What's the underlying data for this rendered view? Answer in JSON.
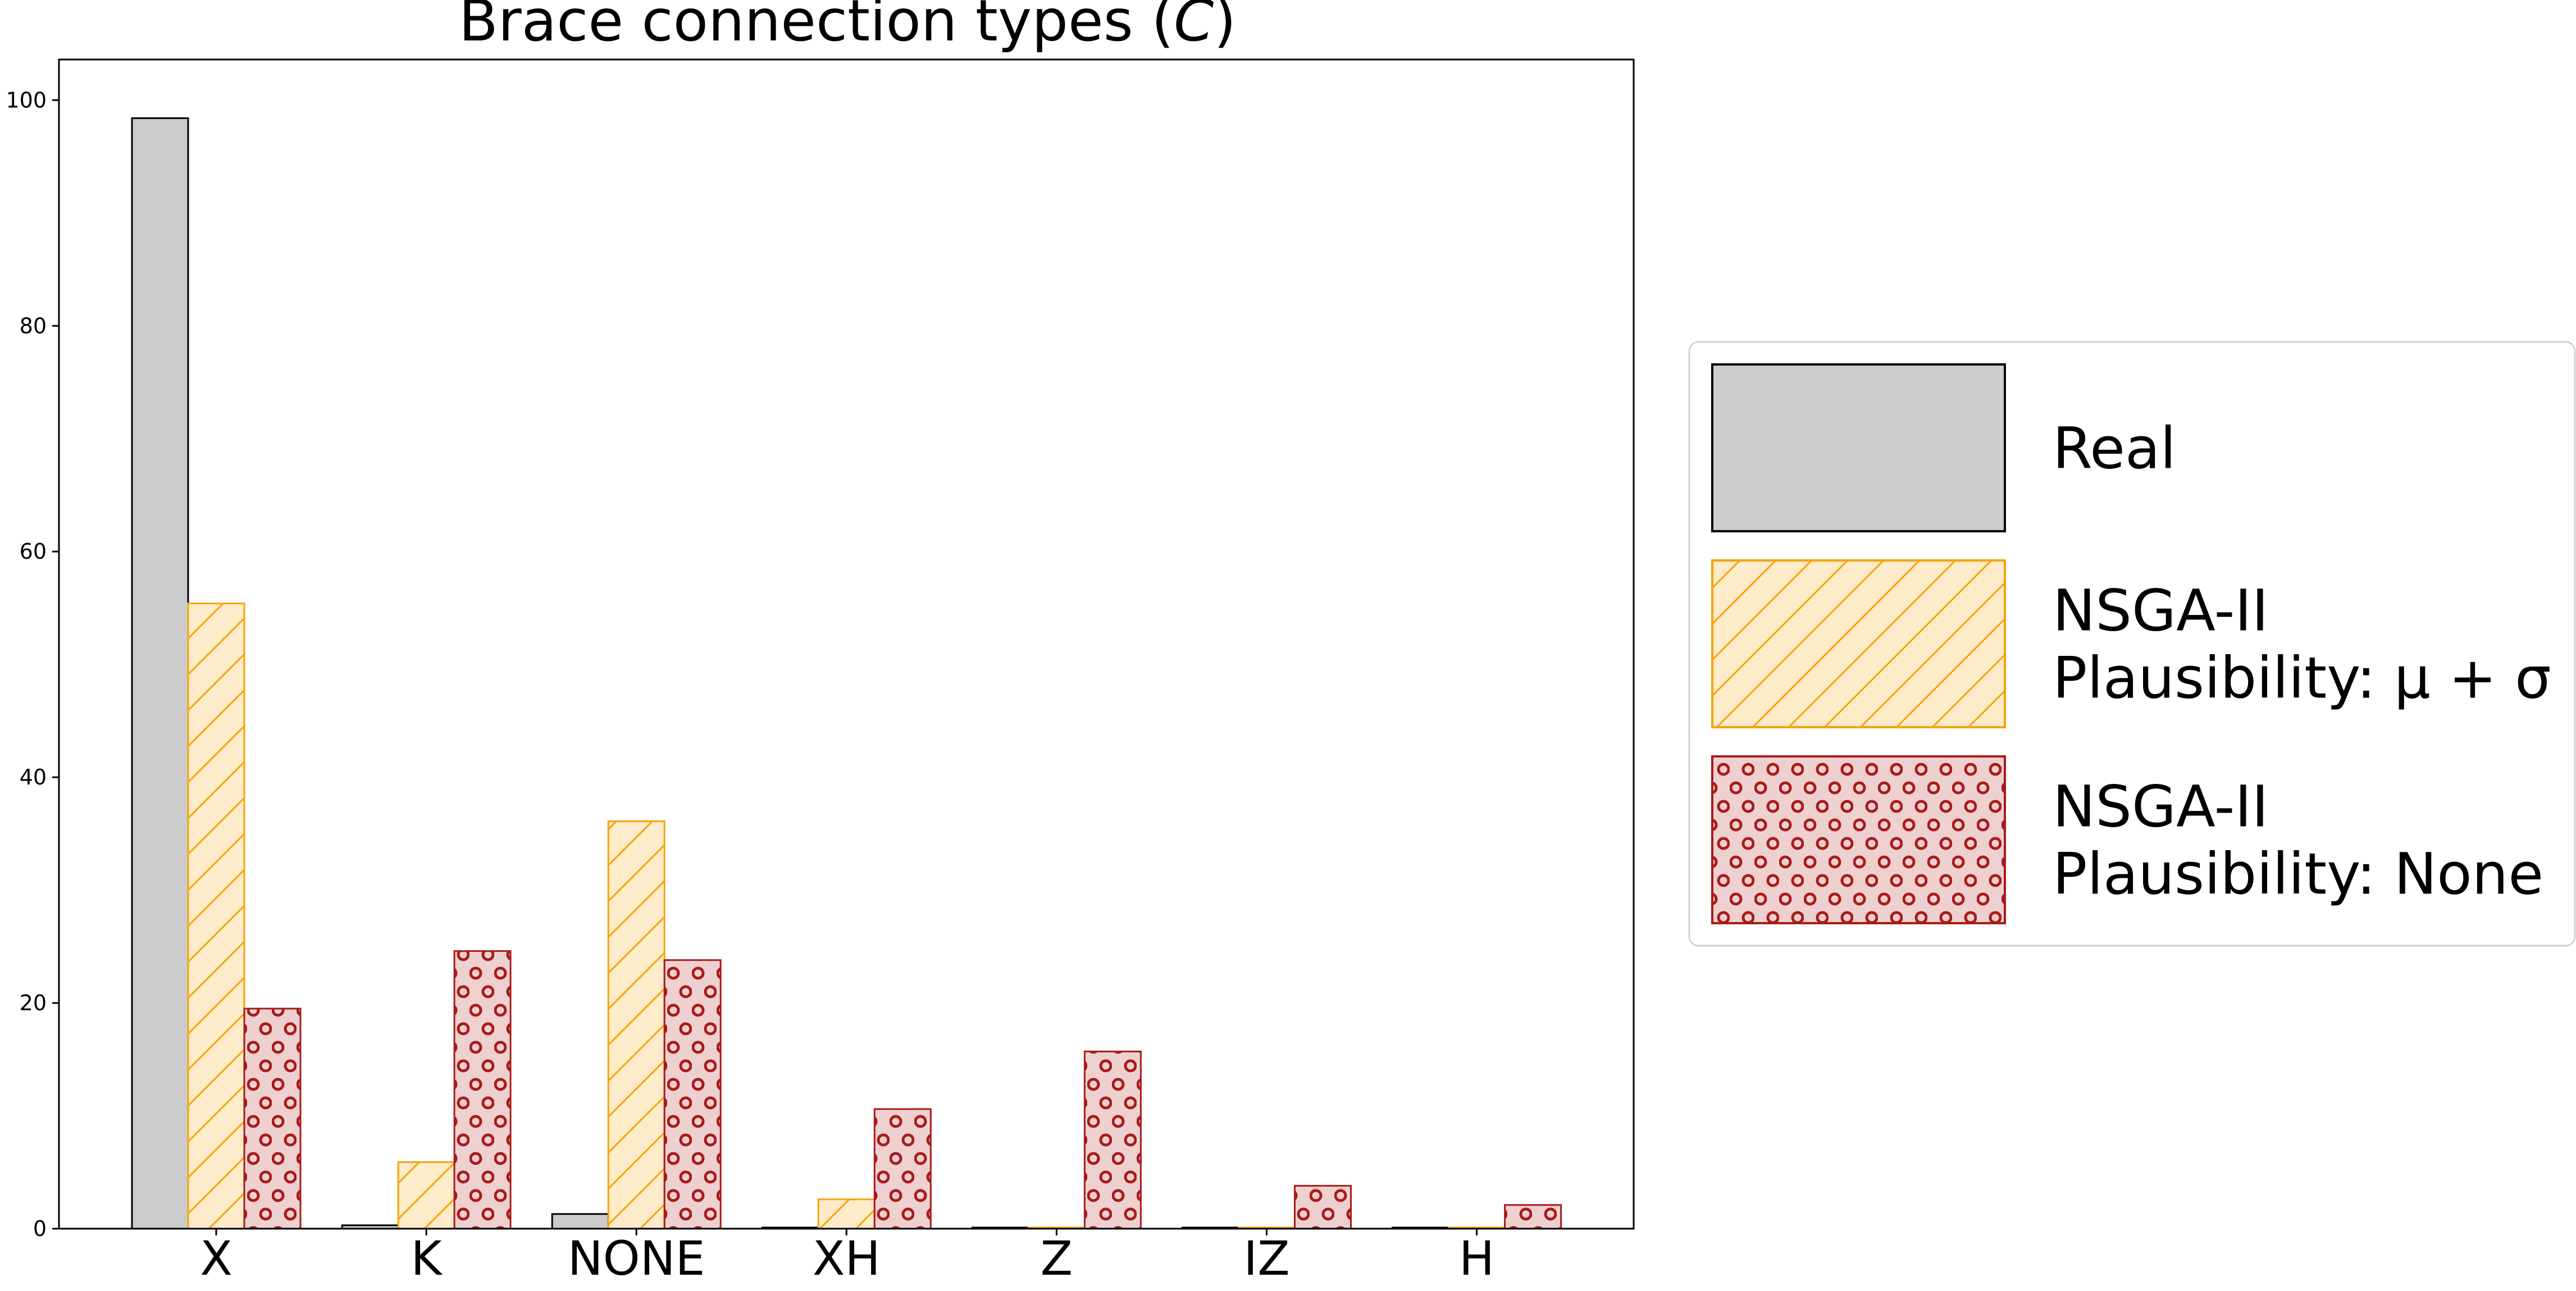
{
  "chart_data": {
    "type": "bar",
    "title": "Brace connection types (C)",
    "title_prefix": "Brace connection types (",
    "title_symbol": "C",
    "title_suffix": ")",
    "xlabel": "",
    "ylabel": "",
    "ylim": [
      0,
      103.6
    ],
    "yticks": [
      0,
      20,
      40,
      60,
      80,
      100
    ],
    "categories": [
      "X",
      "K",
      "NONE",
      "XH",
      "Z",
      "IZ",
      "H"
    ],
    "grid": false,
    "legend_position": "right",
    "series": [
      {
        "name": "Real",
        "values": [
          98.4,
          0.3,
          1.3,
          0.1,
          0.1,
          0.1,
          0.1
        ],
        "fill": "#cccccc",
        "stroke": "#000000",
        "hatch": "none"
      },
      {
        "name": "NSGA-II\nPlausibility: μ + σ",
        "values": [
          55.4,
          5.9,
          36.1,
          2.6,
          0.1,
          0.1,
          0.1
        ],
        "fill": "#fdebc9",
        "stroke": "#f5a40c",
        "hatch": "diagonal"
      },
      {
        "name": "NSGA-II\nPlausibility: None",
        "values": [
          19.5,
          24.6,
          23.8,
          10.6,
          15.7,
          3.8,
          2.1
        ],
        "fill": "#efd0d0",
        "stroke": "#a81b1b",
        "hatch": "circles"
      }
    ],
    "legend": [
      {
        "lines": [
          "Real"
        ]
      },
      {
        "lines": [
          "NSGA-II",
          "Plausibility: μ + σ"
        ]
      },
      {
        "lines": [
          "NSGA-II",
          "Plausibility: None"
        ]
      }
    ]
  }
}
